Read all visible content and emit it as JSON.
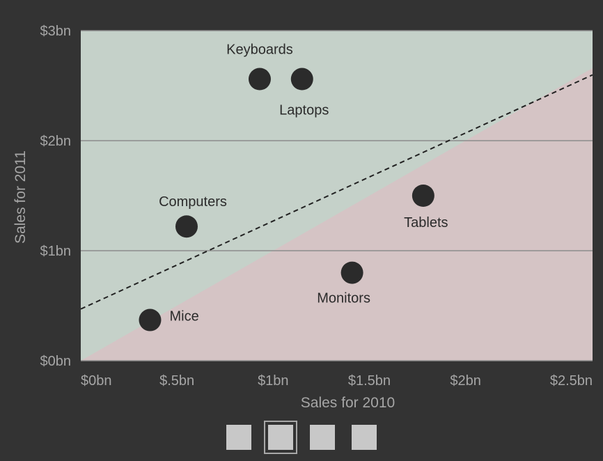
{
  "chart_data": {
    "type": "scatter",
    "xlabel": "Sales for 2010",
    "ylabel": "Sales for 2011",
    "xlim": [
      0,
      2.66
    ],
    "ylim": [
      0,
      3
    ],
    "x_ticks": [
      {
        "value": 0,
        "label": "$0bn"
      },
      {
        "value": 0.5,
        "label": "$.5bn"
      },
      {
        "value": 1,
        "label": "$1bn"
      },
      {
        "value": 1.5,
        "label": "$1.5bn"
      },
      {
        "value": 2,
        "label": "$2bn"
      },
      {
        "value": 2.5,
        "label": "$2.5bn"
      }
    ],
    "y_ticks": [
      {
        "value": 0,
        "label": "$0bn"
      },
      {
        "value": 1,
        "label": "$1bn"
      },
      {
        "value": 2,
        "label": "$2bn"
      },
      {
        "value": 3,
        "label": "$3bn"
      }
    ],
    "grid": {
      "horizontal": true,
      "vertical": false
    },
    "regions": {
      "above_diagonal_color": "#c5d1c9",
      "below_diagonal_color": "#d5c4c5",
      "diagonal": "y = x"
    },
    "trendline": {
      "style": "dashed",
      "intercept": 0.47,
      "slope": 0.8
    },
    "points": [
      {
        "label": "Keyboards",
        "x": 0.93,
        "y": 2.56
      },
      {
        "label": "Laptops",
        "x": 1.15,
        "y": 2.56
      },
      {
        "label": "Computers",
        "x": 0.55,
        "y": 1.22
      },
      {
        "label": "Tablets",
        "x": 1.78,
        "y": 1.5
      },
      {
        "label": "Monitors",
        "x": 1.41,
        "y": 0.8
      },
      {
        "label": "Mice",
        "x": 0.36,
        "y": 0.37
      }
    ],
    "colors": {
      "point": "#2b2b2b",
      "background": "#333333",
      "axis_text": "#a6a6a6",
      "gridline": "#8c8c8c"
    }
  },
  "pager": {
    "count": 4,
    "selected_index": 1,
    "color": "#c8c8c8"
  }
}
